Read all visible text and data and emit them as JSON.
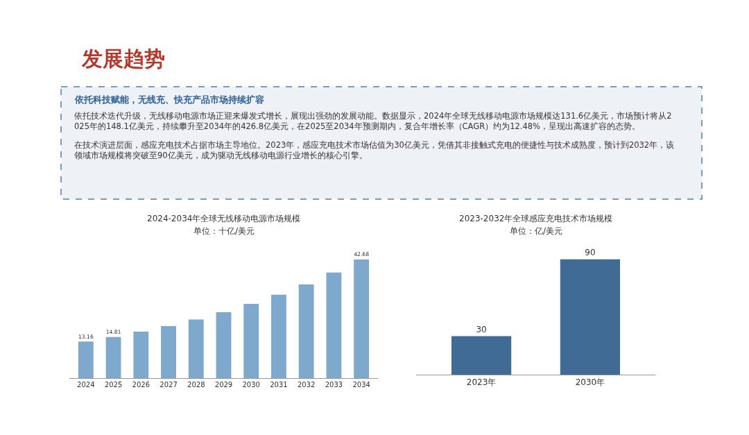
{
  "chart_data": [
    {
      "type": "other",
      "title": "发展趋势",
      "subtitle": "依托科技赋能，无线充、快充产品市场持续扩容",
      "annotations": [
        "依托技术迭代升级，无线移动电源市场正迎来爆发式增长，展现出强劲的发展动能。数据显示，2024年全球无线移动电源市场规模达131.6亿美元，市场预计将从2025年的148.1亿美元，持续攀升至2034年的426.8亿美元，在2025至2034年预测期内，复合年增长率（CAGR）约为12.48%，呈现出高速扩容的态势。",
        "在技术演进层面，感应充电技术占据市场主导地位。2023年，感应充电技术市场估值为30亿美元，凭借其非接触式充电的便捷性与技术成熟度，预计到2032年，该领域市场规模将突破至90亿美元，成为驱动无线移动电源行业增长的核心引擎。"
      ]
    },
    {
      "type": "bar",
      "title": "2024-2034年全球无线移动电源市场规模",
      "subtitle": "单位：十亿/美元",
      "categories": [
        "2024",
        "2025",
        "2026",
        "2027",
        "2028",
        "2029",
        "2030",
        "2031",
        "2032",
        "2033",
        "2034"
      ],
      "values": [
        13.16,
        14.81,
        16.7,
        18.7,
        21.1,
        23.7,
        26.7,
        30.0,
        33.7,
        38.0,
        42.68
      ],
      "value_labels": [
        "13.16",
        "14.81",
        null,
        null,
        null,
        null,
        null,
        null,
        null,
        null,
        "42.68"
      ],
      "color": "#7fa8cd",
      "tick_labels": "x"
    },
    {
      "type": "bar",
      "title": "2023-2032年全球感应充电技术市场规模",
      "subtitle": "单位：亿/美元",
      "categories": [
        "2023年",
        "2030年"
      ],
      "values": [
        30,
        90
      ],
      "color": "#3f6b94",
      "data_labels": true,
      "tick_labels": "x"
    }
  ]
}
